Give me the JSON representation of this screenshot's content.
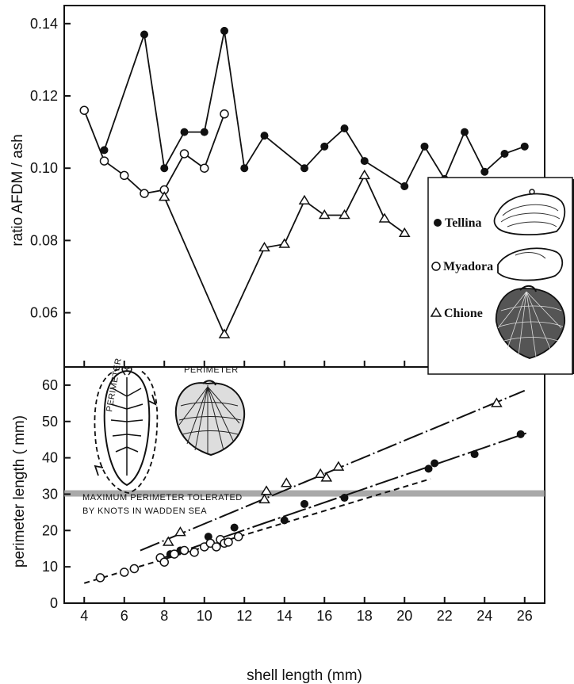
{
  "chart_data": [
    {
      "type": "line",
      "ylabel": "ratio AFDM / ash",
      "xlim": [
        3,
        27
      ],
      "ylim": [
        0.045,
        0.145
      ],
      "yticks": [
        "0.06",
        "0.08",
        "0.10",
        "0.12",
        "0.14"
      ],
      "series": [
        {
          "name": "Tellina",
          "marker": "filled-circle",
          "x": [
            5,
            7,
            8,
            9,
            10,
            11,
            12,
            13,
            15,
            16,
            17,
            18,
            20,
            21,
            22,
            23,
            24,
            25,
            26
          ],
          "y": [
            0.105,
            0.137,
            0.1,
            0.11,
            0.11,
            0.138,
            0.1,
            0.109,
            0.1,
            0.106,
            0.111,
            0.102,
            0.095,
            0.106,
            0.097,
            0.11,
            0.099,
            0.104,
            0.106
          ]
        },
        {
          "name": "Myadora",
          "marker": "open-circle",
          "x": [
            4,
            5,
            6,
            7,
            8,
            9,
            10,
            11
          ],
          "y": [
            0.116,
            0.102,
            0.098,
            0.093,
            0.094,
            0.104,
            0.1,
            0.115
          ]
        },
        {
          "name": "Chione",
          "marker": "open-triangle",
          "x": [
            8,
            11,
            13,
            14,
            15,
            16,
            17,
            18,
            19,
            20
          ],
          "y": [
            0.092,
            0.054,
            0.078,
            0.079,
            0.091,
            0.087,
            0.087,
            0.098,
            0.086,
            0.082
          ]
        }
      ]
    },
    {
      "type": "scatter",
      "xlabel": "shell length (mm)",
      "ylabel": "perimeter length ( mm)",
      "xlim": [
        3,
        27
      ],
      "ylim": [
        0,
        65
      ],
      "xticks": [
        "4",
        "6",
        "8",
        "10",
        "12",
        "14",
        "16",
        "18",
        "20",
        "22",
        "24",
        "26"
      ],
      "yticks": [
        "0",
        "10",
        "20",
        "30",
        "40",
        "50",
        "60"
      ],
      "threshold": {
        "y": 30.2,
        "label_lines": [
          "MAXIMUM PERIMETER TOLERATED",
          "BY KNOTS IN WADDEN SEA"
        ]
      },
      "series": [
        {
          "name": "Chione",
          "marker": "open-triangle",
          "x": [
            8.2,
            8.8,
            13,
            13.1,
            14.1,
            15.8,
            16.1,
            16.7,
            24.6
          ],
          "y": [
            16.8,
            19.5,
            28.5,
            30.8,
            33,
            35.5,
            34.5,
            37.5,
            55
          ],
          "fit": {
            "x": [
              6.8,
              26
            ],
            "y": [
              14.5,
              58.5
            ]
          }
        },
        {
          "name": "Tellina",
          "marker": "filled-circle",
          "x": [
            8.3,
            8.8,
            10.2,
            11.5,
            14,
            15,
            17,
            21.2,
            21.5,
            23.5,
            25.8
          ],
          "y": [
            13.5,
            14.5,
            18.3,
            20.8,
            22.8,
            27.3,
            29,
            37,
            38.5,
            41,
            46.5
          ],
          "fit": {
            "x": [
              7.8,
              26.2
            ],
            "y": [
              12.2,
              47
            ]
          }
        },
        {
          "name": "Myadora",
          "marker": "open-circle",
          "x": [
            4.8,
            6,
            6.5,
            7.8,
            8,
            8.5,
            9,
            9.5,
            10,
            10.3,
            10.6,
            10.8,
            11,
            11.2,
            11.7
          ],
          "y": [
            7,
            8.5,
            9.5,
            12.5,
            11.3,
            13.5,
            14.5,
            14,
            15.5,
            16.5,
            15.5,
            17.5,
            16.5,
            16.8,
            18.3
          ],
          "fit": {
            "x": [
              4.0,
              21.3
            ],
            "y": [
              5.5,
              34.2
            ]
          }
        }
      ]
    }
  ],
  "legend": {
    "items": [
      {
        "label": "Tellina",
        "marker": "filled-circle"
      },
      {
        "label": "Myadora",
        "marker": "open-circle"
      },
      {
        "label": "Chione",
        "marker": "open-triangle"
      }
    ]
  },
  "insets": {
    "left_perimeter_label": "PERIMETER",
    "right_perimeter_label": "PERIMETER"
  }
}
